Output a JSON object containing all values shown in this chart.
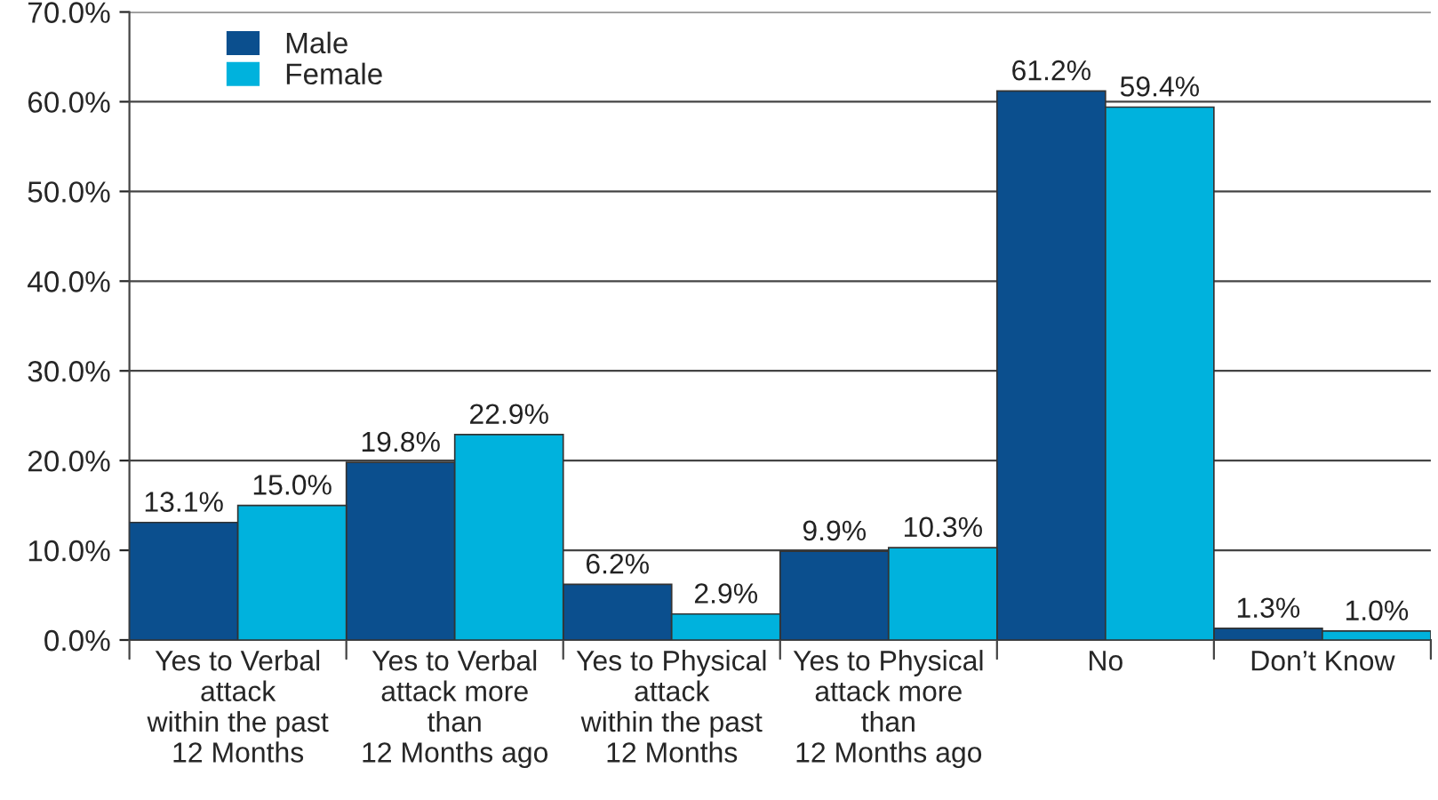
{
  "chart_data": {
    "type": "bar",
    "categories": [
      "Yes to Verbal\nattack\nwithin the past\n12 Months",
      "Yes to Verbal\nattack more\nthan\n12 Months ago",
      "Yes to Physical\nattack\nwithin the past\n12 Months",
      "Yes to Physical\nattack more\nthan\n12 Months ago",
      "No",
      "Don’t Know"
    ],
    "series": [
      {
        "name": "Male",
        "color": "#0b4f8e",
        "values": [
          13.1,
          19.8,
          6.2,
          9.9,
          61.2,
          1.3
        ],
        "value_labels": [
          "13.1%",
          "19.8%",
          "6.2%",
          "9.9%",
          "61.2%",
          "1.3%"
        ]
      },
      {
        "name": "Female",
        "color": "#00b2dd",
        "values": [
          15.0,
          22.9,
          2.9,
          10.3,
          59.4,
          1.0
        ],
        "value_labels": [
          "15.0%",
          "22.9%",
          "2.9%",
          "10.3%",
          "59.4%",
          "1.0%"
        ]
      }
    ],
    "ylim": [
      0,
      70
    ],
    "yticks": [
      {
        "value": 0,
        "label": "0.0%"
      },
      {
        "value": 10,
        "label": "10.0%"
      },
      {
        "value": 20,
        "label": "20.0%"
      },
      {
        "value": 30,
        "label": "30.0%"
      },
      {
        "value": 40,
        "label": "40.0%"
      },
      {
        "value": 50,
        "label": "50.0%"
      },
      {
        "value": 60,
        "label": "60.0%"
      },
      {
        "value": 70,
        "label": "70.0%"
      }
    ],
    "grid": "y",
    "legend": "top left"
  }
}
